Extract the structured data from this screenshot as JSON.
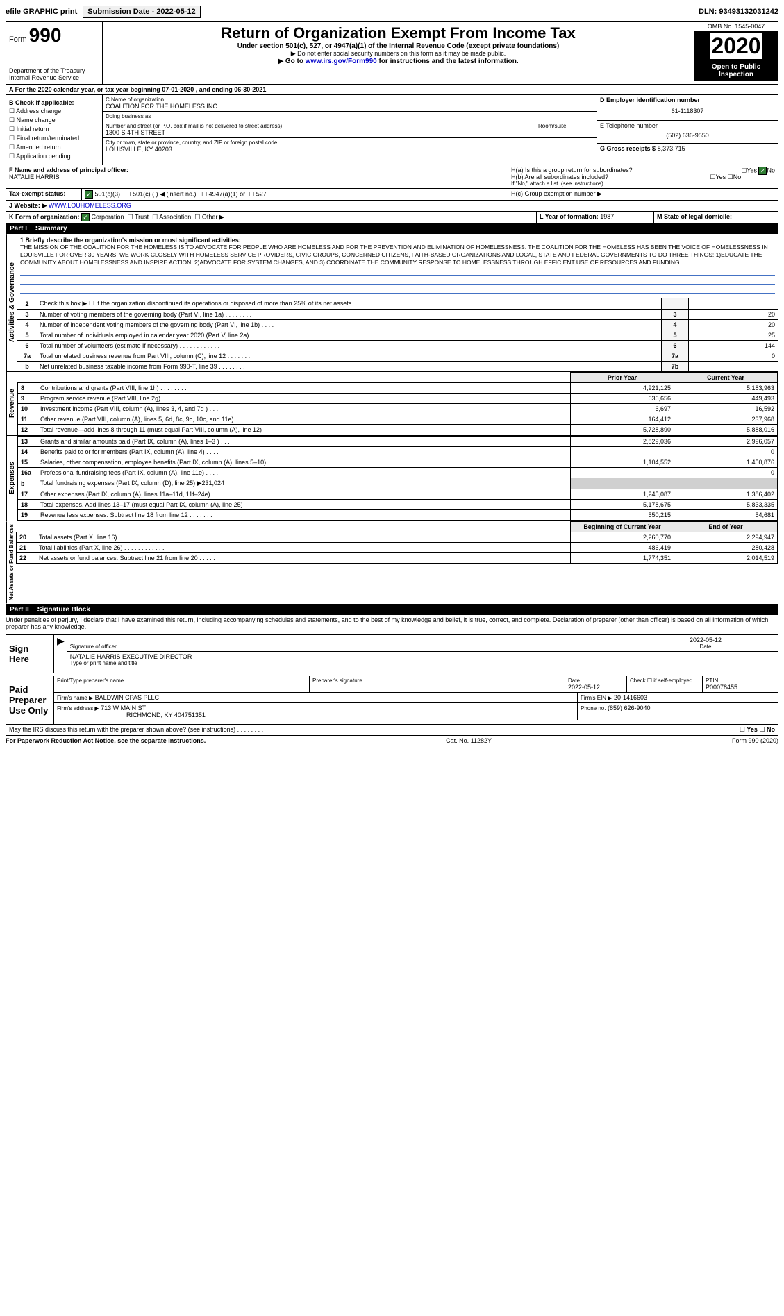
{
  "topbar": {
    "efile": "efile GRAPHIC print",
    "submission": "Submission Date - 2022-05-12",
    "dln": "DLN: 93493132031242"
  },
  "header": {
    "form": "Form",
    "form_no": "990",
    "dept": "Department of the Treasury\nInternal Revenue Service",
    "title": "Return of Organization Exempt From Income Tax",
    "subtitle": "Under section 501(c), 527, or 4947(a)(1) of the Internal Revenue Code (except private foundations)",
    "note1": "▶ Do not enter social security numbers on this form as it may be made public.",
    "note2": "▶ Go to www.irs.gov/Form990 for instructions and the latest information.",
    "omb": "OMB No. 1545-0047",
    "year": "2020",
    "inspection": "Open to Public Inspection"
  },
  "period": "A For the 2020 calendar year, or tax year beginning 07-01-2020   , and ending 06-30-2021",
  "checkboxes": {
    "title": "B Check if applicable:",
    "items": [
      "Address change",
      "Name change",
      "Initial return",
      "Final return/terminated",
      "Amended return",
      "Application pending"
    ]
  },
  "org": {
    "name_label": "C Name of organization",
    "name": "COALITION FOR THE HOMELESS INC",
    "dba_label": "Doing business as",
    "dba": "",
    "addr_label": "Number and street (or P.O. box if mail is not delivered to street address)",
    "addr": "1300 S 4TH STREET",
    "room_label": "Room/suite",
    "city_label": "City or town, state or province, country, and ZIP or foreign postal code",
    "city": "LOUISVILLE, KY  40203"
  },
  "right": {
    "ein_label": "D Employer identification number",
    "ein": "61-1118307",
    "phone_label": "E Telephone number",
    "phone": "(502) 636-9550",
    "gross_label": "G Gross receipts $",
    "gross": "8,373,715"
  },
  "officer": {
    "label": "F  Name and address of principal officer:",
    "name": "NATALIE HARRIS"
  },
  "group": {
    "ha": "H(a)  Is this a group return for subordinates?",
    "hb": "H(b)  Are all subordinates included?",
    "hc_note": "If \"No,\" attach a list. (see instructions)",
    "hc": "H(c)  Group exemption number ▶"
  },
  "tax_status": {
    "label": "Tax-exempt status:",
    "opts": [
      "501(c)(3)",
      "501(c) (  ) ◀ (insert no.)",
      "4947(a)(1) or",
      "527"
    ]
  },
  "website": {
    "label": "J Website: ▶",
    "value": "WWW.LOUHOMELESS.ORG"
  },
  "form_org": {
    "label": "K Form of organization:",
    "opts": [
      "Corporation",
      "Trust",
      "Association",
      "Other ▶"
    ]
  },
  "year_formed": {
    "label": "L Year of formation:",
    "value": "1987"
  },
  "domicile": {
    "label": "M State of legal domicile:",
    "value": ""
  },
  "part1": {
    "header": "Part I",
    "title": "Summary"
  },
  "mission": {
    "label": "1  Briefly describe the organization's mission or most significant activities:",
    "text": "THE MISSION OF THE COALITION FOR THE HOMELESS IS TO ADVOCATE FOR PEOPLE WHO ARE HOMELESS AND FOR THE PREVENTION AND ELIMINATION OF HOMELESSNESS. THE COALITION FOR THE HOMELESS HAS BEEN THE VOICE OF HOMELESSNESS IN LOUISVILLE FOR OVER 30 YEARS. WE WORK CLOSELY WITH HOMELESS SERVICE PROVIDERS, CIVIC GROUPS, CONCERNED CITIZENS, FAITH-BASED ORGANIZATIONS AND LOCAL, STATE AND FEDERAL GOVERNMENTS TO DO THREE THINGS: 1)EDUCATE THE COMMUNITY ABOUT HOMELESSNESS AND INSPIRE ACTION, 2)ADVOCATE FOR SYSTEM CHANGES, AND 3) COORDINATE THE COMMUNITY RESPONSE TO HOMELESSNESS THROUGH EFFICIENT USE OF RESOURCES AND FUNDING."
  },
  "governance_label": "Activities & Governance",
  "gov_lines": [
    {
      "no": "2",
      "desc": "Check this box ▶ ☐ if the organization discontinued its operations or disposed of more than 25% of its net assets.",
      "box": "",
      "val": ""
    },
    {
      "no": "3",
      "desc": "Number of voting members of the governing body (Part VI, line 1a)  .    .    .    .    .    .    .    .",
      "box": "3",
      "val": "20"
    },
    {
      "no": "4",
      "desc": "Number of independent voting members of the governing body (Part VI, line 1b)  .    .    .    .",
      "box": "4",
      "val": "20"
    },
    {
      "no": "5",
      "desc": "Total number of individuals employed in calendar year 2020 (Part V, line 2a)  .    .    .    .    .",
      "box": "5",
      "val": "25"
    },
    {
      "no": "6",
      "desc": "Total number of volunteers (estimate if necessary)  .    .    .    .    .    .    .    .    .    .    .    .",
      "box": "6",
      "val": "144"
    },
    {
      "no": "7a",
      "desc": "Total unrelated business revenue from Part VIII, column (C), line 12  .    .    .    .    .    .    .",
      "box": "7a",
      "val": "0"
    },
    {
      "no": "b",
      "desc": "Net unrelated business taxable income from Form 990-T, line 39  .    .    .    .    .    .    .    .",
      "box": "7b",
      "val": ""
    }
  ],
  "col_headers": {
    "prior": "Prior Year",
    "current": "Current Year",
    "begin": "Beginning of Current Year",
    "end": "End of Year"
  },
  "revenue_label": "Revenue",
  "revenue": [
    {
      "no": "8",
      "desc": "Contributions and grants (Part VIII, line 1h)  .    .    .    .    .    .    .    .",
      "prior": "4,921,125",
      "curr": "5,183,963"
    },
    {
      "no": "9",
      "desc": "Program service revenue (Part VIII, line 2g)  .    .    .    .    .    .    .    .",
      "prior": "636,656",
      "curr": "449,493"
    },
    {
      "no": "10",
      "desc": "Investment income (Part VIII, column (A), lines 3, 4, and 7d )  .    .    .",
      "prior": "6,697",
      "curr": "16,592"
    },
    {
      "no": "11",
      "desc": "Other revenue (Part VIII, column (A), lines 5, 6d, 8c, 9c, 10c, and 11e)",
      "prior": "164,412",
      "curr": "237,968"
    },
    {
      "no": "12",
      "desc": "Total revenue—add lines 8 through 11 (must equal Part VIII, column (A), line 12)",
      "prior": "5,728,890",
      "curr": "5,888,016"
    }
  ],
  "expenses_label": "Expenses",
  "expenses": [
    {
      "no": "13",
      "desc": "Grants and similar amounts paid (Part IX, column (A), lines 1–3 )  .    .    .",
      "prior": "2,829,036",
      "curr": "2,996,057"
    },
    {
      "no": "14",
      "desc": "Benefits paid to or for members (Part IX, column (A), line 4)  .    .    .    .",
      "prior": "",
      "curr": "0"
    },
    {
      "no": "15",
      "desc": "Salaries, other compensation, employee benefits (Part IX, column (A), lines 5–10)",
      "prior": "1,104,552",
      "curr": "1,450,876"
    },
    {
      "no": "16a",
      "desc": "Professional fundraising fees (Part IX, column (A), line 11e)  .    .    .    .",
      "prior": "",
      "curr": "0"
    },
    {
      "no": "b",
      "desc": "Total fundraising expenses (Part IX, column (D), line 25) ▶231,024",
      "prior": "GRAY",
      "curr": "GRAY"
    },
    {
      "no": "17",
      "desc": "Other expenses (Part IX, column (A), lines 11a–11d, 11f–24e)  .    .    .    .",
      "prior": "1,245,087",
      "curr": "1,386,402"
    },
    {
      "no": "18",
      "desc": "Total expenses. Add lines 13–17 (must equal Part IX, column (A), line 25)",
      "prior": "5,178,675",
      "curr": "5,833,335"
    },
    {
      "no": "19",
      "desc": "Revenue less expenses. Subtract line 18 from line 12  .    .    .    .    .    .    .",
      "prior": "550,215",
      "curr": "54,681"
    }
  ],
  "netassets_label": "Net Assets or Fund Balances",
  "netassets": [
    {
      "no": "20",
      "desc": "Total assets (Part X, line 16)  .    .    .    .    .    .    .    .    .    .    .    .    .",
      "prior": "2,260,770",
      "curr": "2,294,947"
    },
    {
      "no": "21",
      "desc": "Total liabilities (Part X, line 26)  .    .    .    .    .    .    .    .    .    .    .    .",
      "prior": "486,419",
      "curr": "280,428"
    },
    {
      "no": "22",
      "desc": "Net assets or fund balances. Subtract line 21 from line 20  .    .    .    .    .",
      "prior": "1,774,351",
      "curr": "2,014,519"
    }
  ],
  "part2": {
    "header": "Part II",
    "title": "Signature Block"
  },
  "perjury": "Under penalties of perjury, I declare that I have examined this return, including accompanying schedules and statements, and to the best of my knowledge and belief, it is true, correct, and complete. Declaration of preparer (other than officer) is based on all information of which preparer has any knowledge.",
  "sign": {
    "label": "Sign Here",
    "sig_label": "Signature of officer",
    "date_label": "Date",
    "date": "2022-05-12",
    "name": "NATALIE HARRIS EXECUTIVE DIRECTOR",
    "name_label": "Type or print name and title"
  },
  "preparer": {
    "label": "Paid Preparer Use Only",
    "print_label": "Print/Type preparer's name",
    "sig_label": "Preparer's signature",
    "date_label": "Date",
    "date": "2022-05-12",
    "check_label": "Check ☐ if self-employed",
    "ptin_label": "PTIN",
    "ptin": "P00078455",
    "firm_name_label": "Firm's name    ▶",
    "firm_name": "BALDWIN CPAS PLLC",
    "firm_ein_label": "Firm's EIN ▶",
    "firm_ein": "20-1416603",
    "firm_addr_label": "Firm's address ▶",
    "firm_addr": "713 W MAIN ST",
    "firm_city": "RICHMOND, KY  404751351",
    "phone_label": "Phone no.",
    "phone": "(859) 626-9040"
  },
  "discuss": "May the IRS discuss this return with the preparer shown above? (see instructions)  .    .    .    .    .    .    .    .",
  "footer": {
    "left": "For Paperwork Reduction Act Notice, see the separate instructions.",
    "center": "Cat. No. 11282Y",
    "right": "Form 990 (2020)"
  }
}
